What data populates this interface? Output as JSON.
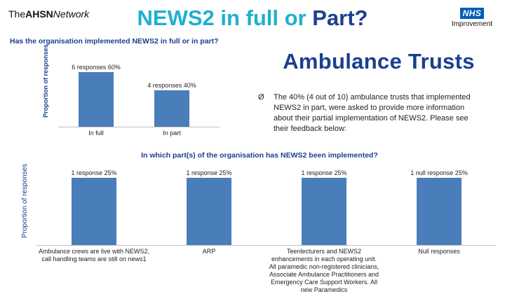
{
  "header": {
    "logo_the": "The",
    "logo_ahsn": "AHSN",
    "logo_network": "Network",
    "title_part1": "NEWS2 in full or ",
    "title_part2": "Part?",
    "nhs_badge": "NHS",
    "nhs_sub": "Improvement"
  },
  "section": {
    "question": "Has the organisation implemented NEWS2 in full or in part?",
    "subtitle": "Ambulance Trusts",
    "bullet_symbol": "Ø",
    "bullet_text": "The 40% (4 out of 10) ambulance trusts that implemented NEWS2 in part, were asked to provide more information about their partial implementation of NEWS2. Please see their feedback below:"
  },
  "chart_data": [
    {
      "type": "bar",
      "title": "Has the organisation implemented NEWS2 in full or in part?",
      "ylabel": "Proportion of responses",
      "xlabel": "",
      "categories": [
        "In full",
        "In part"
      ],
      "values": [
        60,
        40
      ],
      "data_labels": [
        "6 responses 60%",
        "4 responses 40%"
      ],
      "ylim": [
        0,
        60
      ],
      "grid": false,
      "bar_color": "#4a7ebb"
    },
    {
      "type": "bar",
      "title": "In which part(s) of the organisation has NEWS2 been implemented?",
      "ylabel": "Proportion of responses",
      "xlabel": "",
      "categories": [
        "Ambulance crews are live with NEWS2, call handling teams are still on news1",
        "ARP",
        "Teenlecturers and NEWS2 enhancements in each operating unit. All paramedic non-registered clinicians, Associate Ambulance Practitioners and Emergency Care Support Workers. All new Paramedics",
        "Null responses"
      ],
      "values": [
        25,
        25,
        25,
        25
      ],
      "data_labels": [
        "1 response 25%",
        "1 response 25%",
        "1 response 25%",
        "1 null response 25%"
      ],
      "ylim": [
        0,
        25
      ],
      "grid": false,
      "bar_color": "#4a7ebb"
    }
  ],
  "colors": {
    "title_light": "#1fb0cf",
    "title_dark": "#1b3f8f",
    "bar": "#4a7ebb",
    "nhs_blue": "#005eb8"
  }
}
